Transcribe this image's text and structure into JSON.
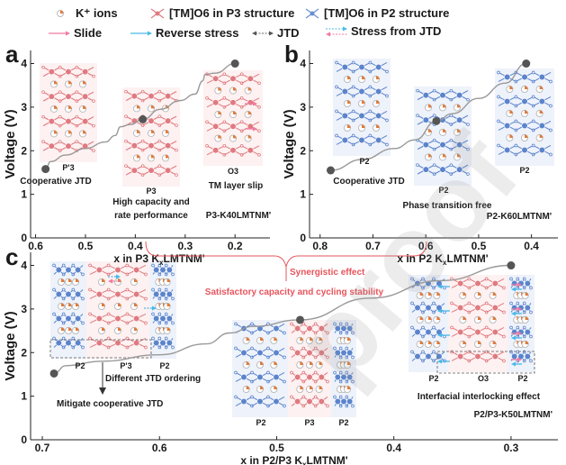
{
  "legend": {
    "items": [
      {
        "icon": "k-ion-icon",
        "label": "K⁺ ions"
      },
      {
        "icon": "tm-o6-p3-icon",
        "label": "[TM]O6 in P3 structure",
        "color": "#e07a80"
      },
      {
        "icon": "tm-o6-p2-icon",
        "label": "[TM]O6 in P2 structure",
        "color": "#6a8fd0"
      },
      {
        "icon": "slide-arrow-icon",
        "label": "Slide",
        "color": "#f07aa0"
      },
      {
        "icon": "reverse-stress-arrow-icon",
        "label": "Reverse stress",
        "color": "#4ab8e8"
      },
      {
        "icon": "jtd-arrow-icon",
        "label": "JTD",
        "color": "#555555"
      },
      {
        "icon": "stress-from-jtd-arrow-icon",
        "label": "Stress from JTD",
        "color": "#4ab8e8"
      }
    ]
  },
  "colors": {
    "p3": "#e07a80",
    "p3_bg": "#fdf1f1",
    "p2": "#5b84cc",
    "p2_bg": "#eef2fa",
    "curve": "#999999",
    "marker": "#555555",
    "accent": "#e8545c"
  },
  "annotations": {
    "synergy": "Synergistic effect",
    "satisfactory": "Satisfactory capacity and cycling stability",
    "watermark": "proof"
  },
  "chart_data": [
    {
      "type": "line",
      "panel": "a",
      "title": "P3-K40LMTNM'",
      "xlabel": "x in P3 KxLMTNM'",
      "ylabel": "Voltage (V)",
      "xlim": [
        0.61,
        0.13
      ],
      "ylim": [
        0,
        4.3
      ],
      "xticks": [
        0.6,
        0.5,
        0.4,
        0.3,
        0.2
      ],
      "yticks": [
        0,
        1,
        2,
        3,
        4
      ],
      "curve": {
        "x": [
          0.58,
          0.57,
          0.54,
          0.5,
          0.46,
          0.44,
          0.43,
          0.41,
          0.385,
          0.35,
          0.31,
          0.28,
          0.265,
          0.26,
          0.24,
          0.2
        ],
        "y": [
          1.58,
          1.75,
          1.9,
          2.05,
          2.2,
          2.35,
          2.55,
          2.6,
          2.72,
          2.95,
          3.15,
          3.3,
          3.6,
          3.75,
          3.78,
          4.0
        ]
      },
      "markers": [
        {
          "x": 0.58,
          "y": 1.58
        },
        {
          "x": 0.385,
          "y": 2.72
        },
        {
          "x": 0.2,
          "y": 4.0
        }
      ],
      "structure_labels": [
        "P'3",
        "P3",
        "O3"
      ],
      "notes": [
        "Cooperative JTD",
        "High capacity and",
        "rate performance",
        "TM layer slip"
      ]
    },
    {
      "type": "line",
      "panel": "b",
      "title": "P2-K60LMTNM'",
      "xlabel": "x in P2 KxLMTNM'",
      "ylabel": "Voltage (V)",
      "xlim": [
        0.82,
        0.35
      ],
      "ylim": [
        0,
        4.3
      ],
      "xticks": [
        0.8,
        0.7,
        0.6,
        0.5,
        0.4
      ],
      "yticks": [
        0,
        1,
        2,
        3,
        4
      ],
      "curve": {
        "x": [
          0.78,
          0.72,
          0.66,
          0.62,
          0.58,
          0.55,
          0.5,
          0.45,
          0.41
        ],
        "y": [
          1.55,
          1.8,
          2.05,
          2.25,
          2.68,
          2.85,
          3.2,
          3.55,
          4.0
        ]
      },
      "markers": [
        {
          "x": 0.78,
          "y": 1.55
        },
        {
          "x": 0.58,
          "y": 2.68
        },
        {
          "x": 0.41,
          "y": 4.0
        }
      ],
      "structure_labels": [
        "P2",
        "P2",
        "P2"
      ],
      "notes": [
        "Cooperative JTD",
        "Phase transition free"
      ]
    },
    {
      "type": "line",
      "panel": "c",
      "title": "P2/P3-K50LMTNM'",
      "xlabel": "x in P2/P3 KxLMTNM'",
      "ylabel": "Voltage (V)",
      "xlim": [
        0.71,
        0.26
      ],
      "ylim": [
        0,
        4.3
      ],
      "xticks": [
        0.7,
        0.6,
        0.5,
        0.4,
        0.3
      ],
      "yticks": [
        0,
        1,
        2,
        3,
        4
      ],
      "curve": {
        "x": [
          0.69,
          0.68,
          0.65,
          0.6,
          0.56,
          0.54,
          0.52,
          0.48,
          0.42,
          0.36,
          0.3
        ],
        "y": [
          1.52,
          1.7,
          1.8,
          1.95,
          2.2,
          2.45,
          2.6,
          2.75,
          3.25,
          3.65,
          4.0
        ]
      },
      "markers": [
        {
          "x": 0.69,
          "y": 1.52
        },
        {
          "x": 0.48,
          "y": 2.75
        },
        {
          "x": 0.3,
          "y": 4.0
        }
      ],
      "structure_labels": [
        [
          "P2",
          "P'3",
          "P2"
        ],
        [
          "P2",
          "P3",
          "P2"
        ],
        [
          "P2",
          "O3",
          "P2"
        ]
      ],
      "notes": [
        "Different JTD ordering",
        "Mitigate cooperative JTD",
        "Interfacial interlocking effect"
      ]
    }
  ]
}
